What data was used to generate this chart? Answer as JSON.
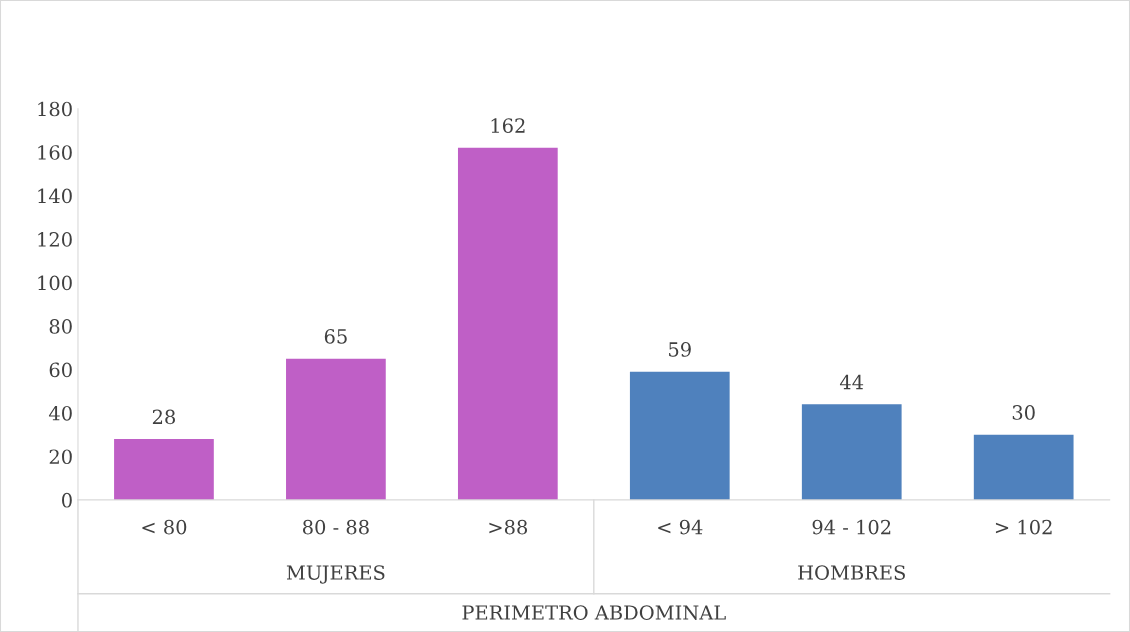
{
  "chart_data": {
    "type": "bar",
    "categories": [
      "< 80",
      "80 - 88",
      ">88",
      "< 94",
      "94 - 102",
      "> 102"
    ],
    "values": [
      28,
      65,
      162,
      59,
      44,
      30
    ],
    "colors": [
      "#bf5fc6",
      "#bf5fc6",
      "#bf5fc6",
      "#4f81bd",
      "#4f81bd",
      "#4f81bd"
    ],
    "xlabel": "PERIMETRO ABDOMINAL",
    "annotations": [
      "MUJERES",
      "HOMBRES"
    ],
    "ylim": [
      0,
      180
    ],
    "yticks": [
      0,
      20,
      40,
      60,
      80,
      100,
      120,
      140,
      160,
      180
    ],
    "data_labels": true,
    "grid": false
  }
}
